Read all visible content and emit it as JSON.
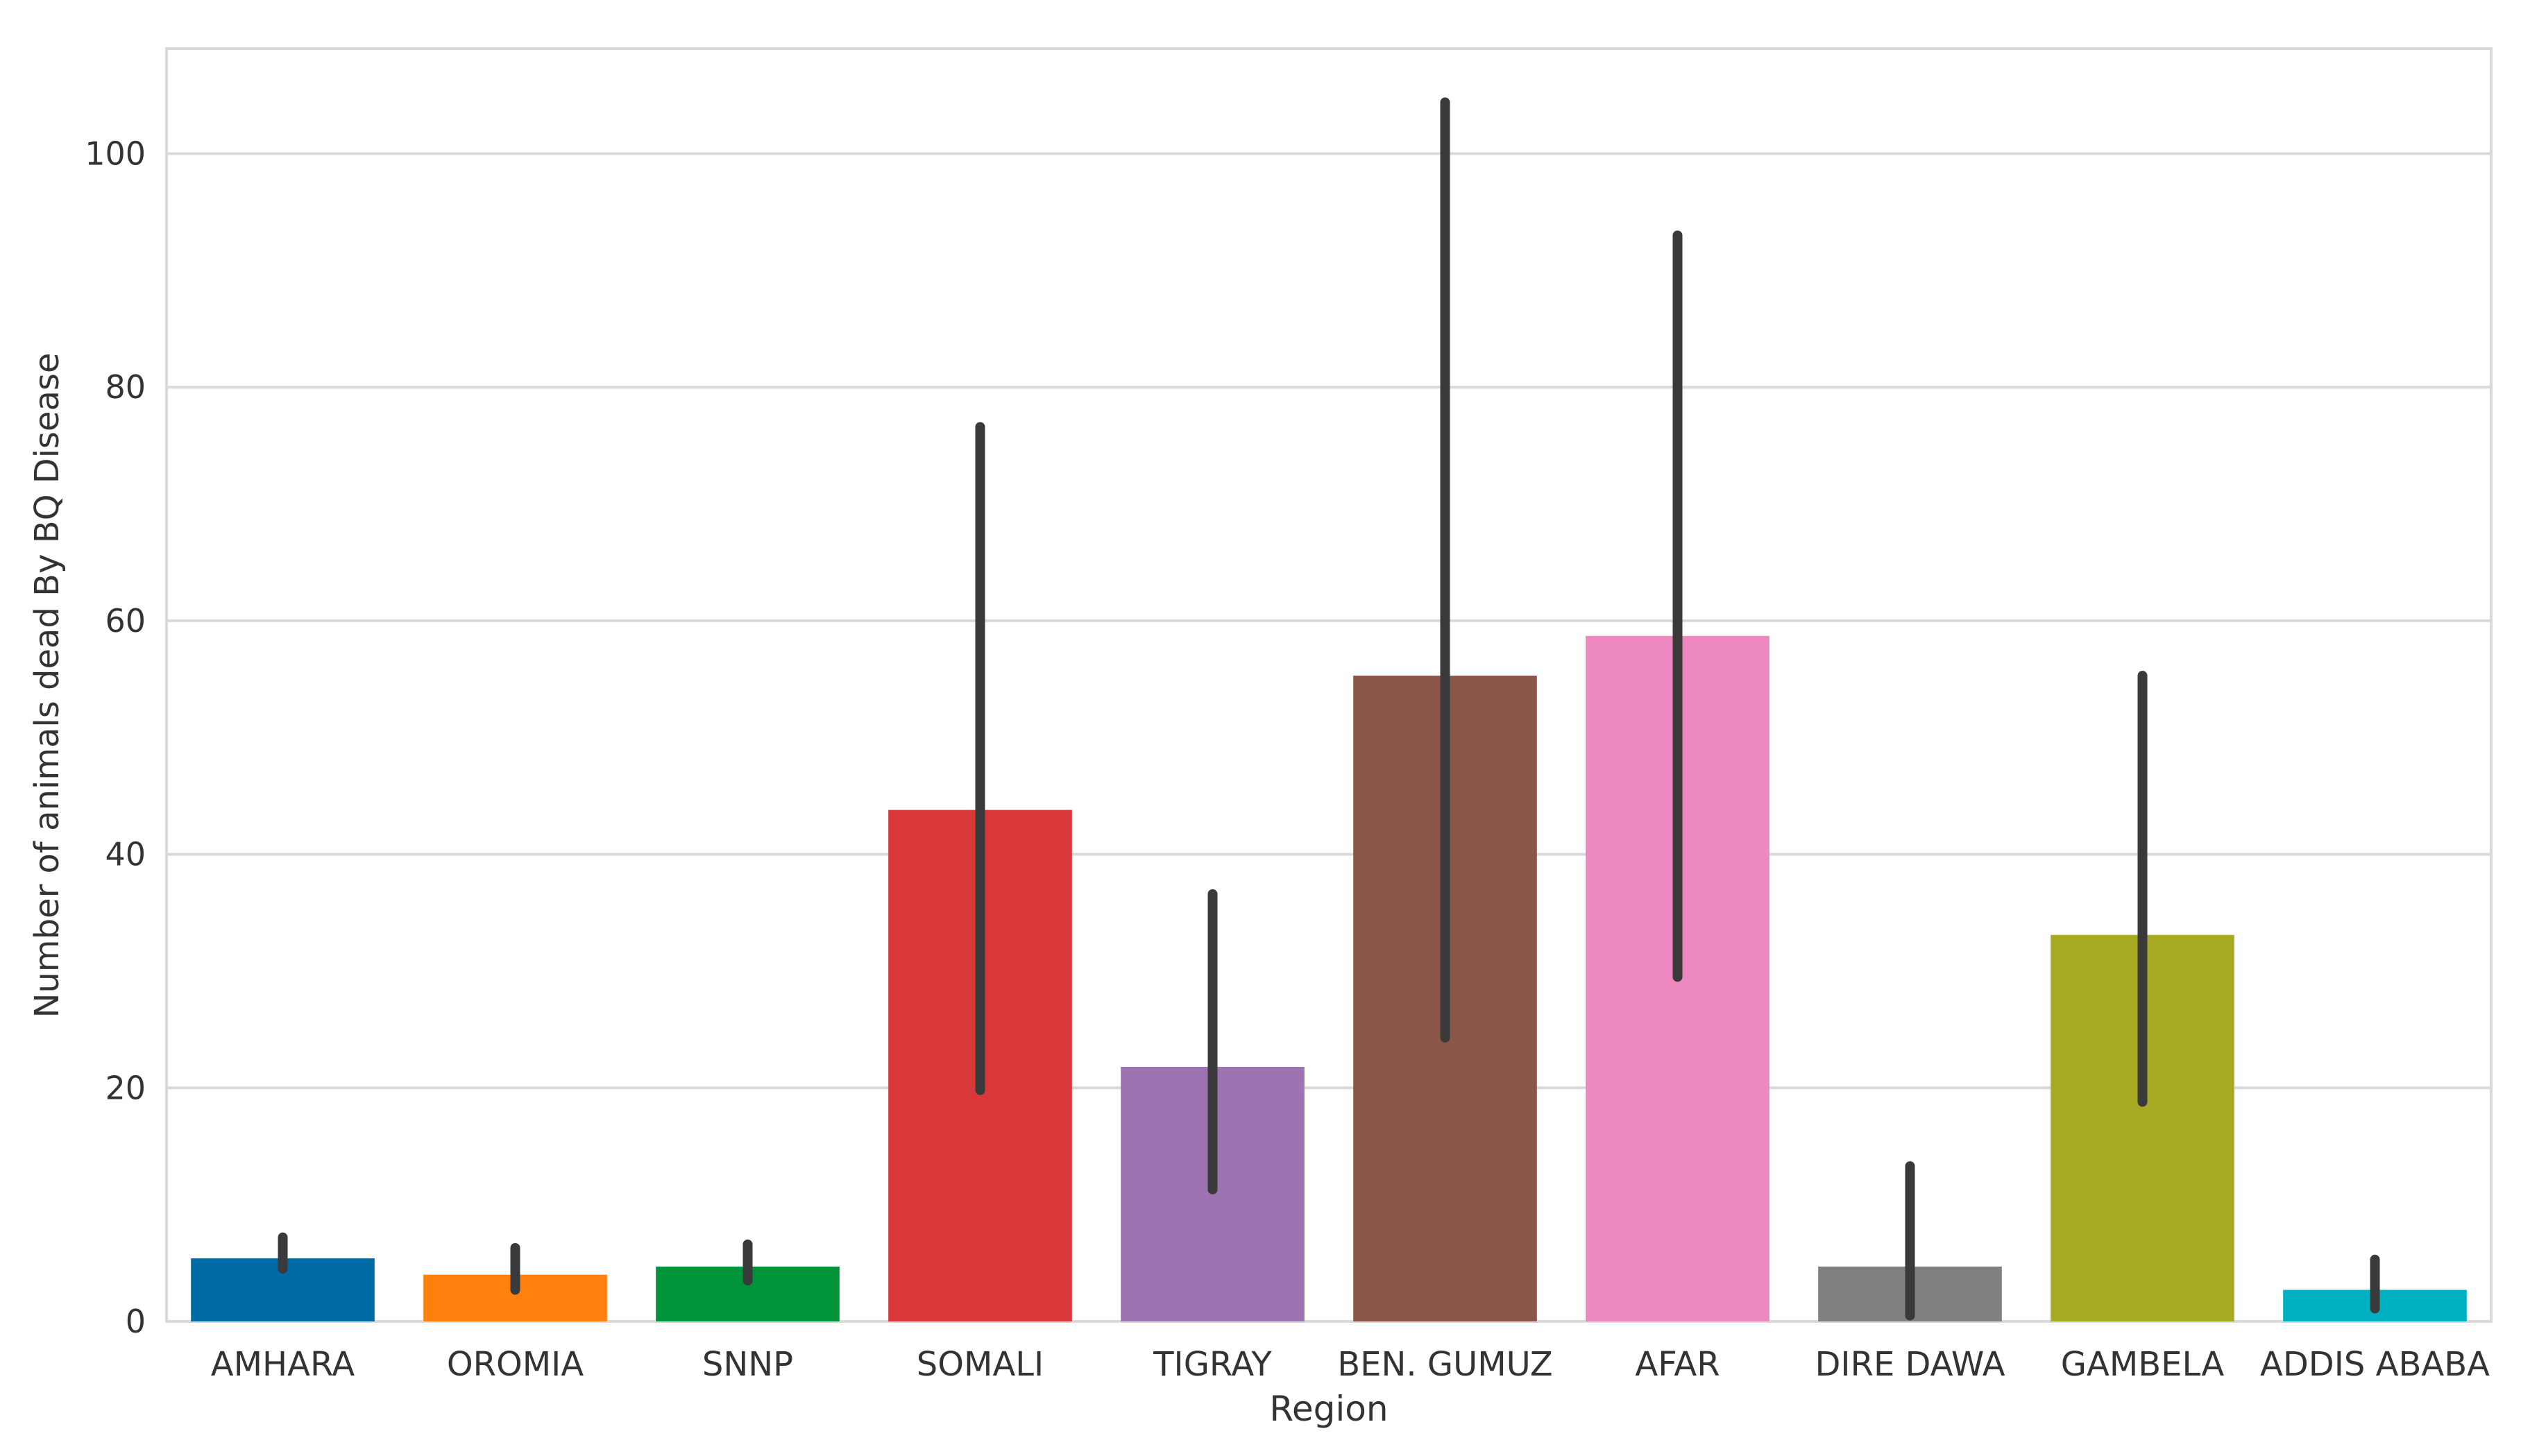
{
  "chart_data": {
    "type": "bar",
    "title": "",
    "xlabel": "Region",
    "ylabel": "Number of animals dead By BQ Disease",
    "ylim": [
      0,
      109
    ],
    "yticks": [
      0,
      20,
      40,
      60,
      80,
      100
    ],
    "grid": true,
    "legend": "none",
    "categories": [
      "AMHARA",
      "OROMIA",
      "SNNP",
      "SOMALI",
      "TIGRAY",
      "BEN. GUMUZ",
      "AFAR",
      "DIRE DAWA",
      "GAMBELA",
      "ADDIS ABABA"
    ],
    "values": [
      5.4,
      4.0,
      4.7,
      43.8,
      21.8,
      55.3,
      58.7,
      4.7,
      33.1,
      2.7
    ],
    "error_low": [
      4.5,
      2.7,
      3.5,
      19.8,
      11.3,
      24.3,
      29.5,
      0.5,
      18.8,
      1.1
    ],
    "error_high": [
      7.2,
      6.3,
      6.6,
      76.6,
      36.6,
      104.4,
      93.0,
      13.3,
      55.3,
      5.3
    ],
    "colors": [
      "#006ba4",
      "#ff800e",
      "#00943a",
      "#d9383a",
      "#9d73b1",
      "#8c564b",
      "#ed87c0",
      "#808080",
      "#a8aa24",
      "#00b0c0"
    ],
    "error_color": "#3a3a3a"
  }
}
